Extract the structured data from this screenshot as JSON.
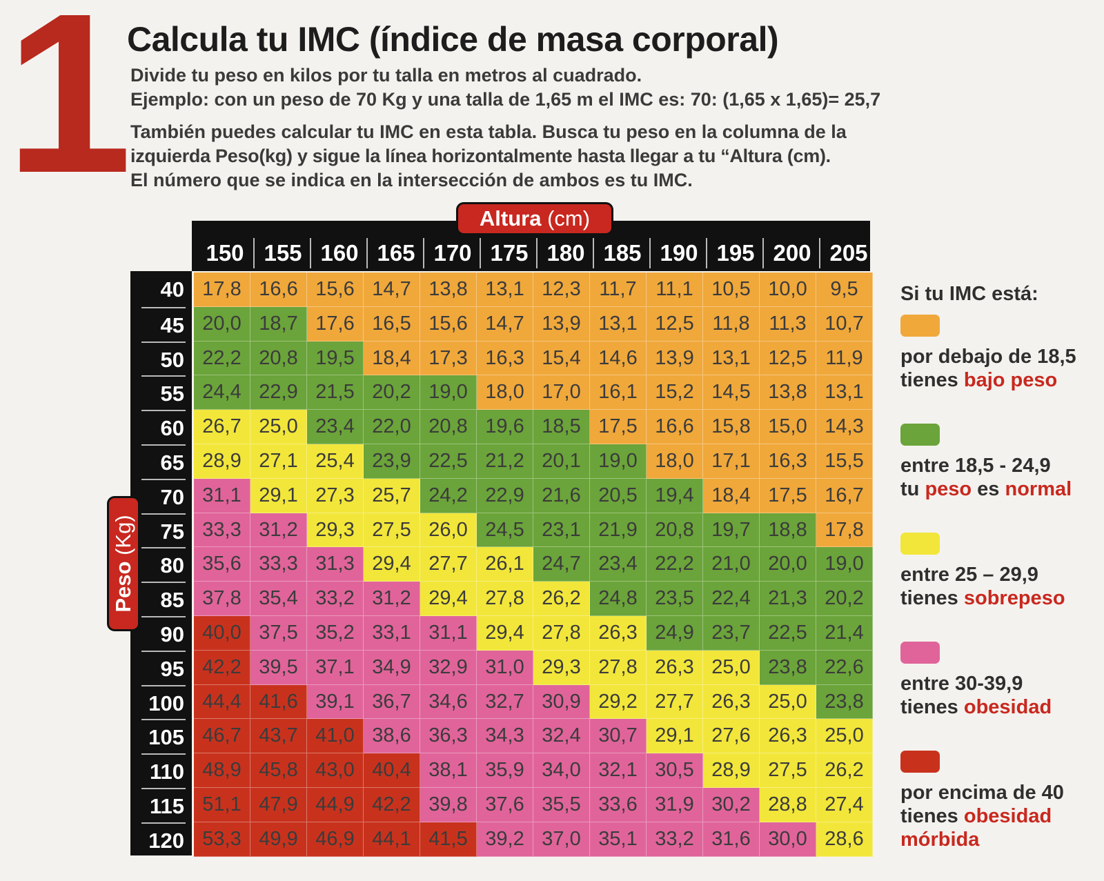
{
  "number": "1",
  "title": "Calcula tu IMC (índice de masa corporal)",
  "intro": {
    "line1": "Divide tu peso en kilos por tu talla en metros al cuadrado.",
    "line2": "Ejemplo: con un peso de 70 Kg y una talla de 1,65 m el IMC es: 70: (1,65 x 1,65)= 25,7",
    "line3": "También puedes calcular tu IMC en esta tabla. Busca tu peso en la columna de la",
    "line4": "izquierda Peso(kg) y sigue la línea horizontalmente hasta llegar a tu “Altura (cm).",
    "line5": "El número que se indica en la intersección de ambos es tu IMC."
  },
  "axis": {
    "altura_word": "Altura",
    "altura_unit": "(cm)",
    "peso_word": "Peso",
    "peso_unit": "(Kg)"
  },
  "colors": {
    "orange": "#f0a83b",
    "green": "#6ba43a",
    "yellow": "#f2e63a",
    "pink": "#e0649a",
    "red": "#c8321d",
    "accent": "#c8281f"
  },
  "table": {
    "heights": [
      "150",
      "155",
      "160",
      "165",
      "170",
      "175",
      "180",
      "185",
      "190",
      "195",
      "200",
      "205"
    ],
    "rows": [
      {
        "weight": "40",
        "values": [
          "17,8",
          "16,6",
          "15,6",
          "14,7",
          "13,8",
          "13,1",
          "12,3",
          "11,7",
          "11,1",
          "10,5",
          "10,0",
          "9,5"
        ]
      },
      {
        "weight": "45",
        "values": [
          "20,0",
          "18,7",
          "17,6",
          "16,5",
          "15,6",
          "14,7",
          "13,9",
          "13,1",
          "12,5",
          "11,8",
          "11,3",
          "10,7"
        ]
      },
      {
        "weight": "50",
        "values": [
          "22,2",
          "20,8",
          "19,5",
          "18,4",
          "17,3",
          "16,3",
          "15,4",
          "14,6",
          "13,9",
          "13,1",
          "12,5",
          "11,9"
        ]
      },
      {
        "weight": "55",
        "values": [
          "24,4",
          "22,9",
          "21,5",
          "20,2",
          "19,0",
          "18,0",
          "17,0",
          "16,1",
          "15,2",
          "14,5",
          "13,8",
          "13,1"
        ]
      },
      {
        "weight": "60",
        "values": [
          "26,7",
          "25,0",
          "23,4",
          "22,0",
          "20,8",
          "19,6",
          "18,5",
          "17,5",
          "16,6",
          "15,8",
          "15,0",
          "14,3"
        ]
      },
      {
        "weight": "65",
        "values": [
          "28,9",
          "27,1",
          "25,4",
          "23,9",
          "22,5",
          "21,2",
          "20,1",
          "19,0",
          "18,0",
          "17,1",
          "16,3",
          "15,5"
        ]
      },
      {
        "weight": "70",
        "values": [
          "31,1",
          "29,1",
          "27,3",
          "25,7",
          "24,2",
          "22,9",
          "21,6",
          "20,5",
          "19,4",
          "18,4",
          "17,5",
          "16,7"
        ]
      },
      {
        "weight": "75",
        "values": [
          "33,3",
          "31,2",
          "29,3",
          "27,5",
          "26,0",
          "24,5",
          "23,1",
          "21,9",
          "20,8",
          "19,7",
          "18,8",
          "17,8"
        ]
      },
      {
        "weight": "80",
        "values": [
          "35,6",
          "33,3",
          "31,3",
          "29,4",
          "27,7",
          "26,1",
          "24,7",
          "23,4",
          "22,2",
          "21,0",
          "20,0",
          "19,0"
        ]
      },
      {
        "weight": "85",
        "values": [
          "37,8",
          "35,4",
          "33,2",
          "31,2",
          "29,4",
          "27,8",
          "26,2",
          "24,8",
          "23,5",
          "22,4",
          "21,3",
          "20,2"
        ]
      },
      {
        "weight": "90",
        "values": [
          "40,0",
          "37,5",
          "35,2",
          "33,1",
          "31,1",
          "29,4",
          "27,8",
          "26,3",
          "24,9",
          "23,7",
          "22,5",
          "21,4"
        ]
      },
      {
        "weight": "95",
        "values": [
          "42,2",
          "39,5",
          "37,1",
          "34,9",
          "32,9",
          "31,0",
          "29,3",
          "27,8",
          "26,3",
          "25,0",
          "23,8",
          "22,6"
        ]
      },
      {
        "weight": "100",
        "values": [
          "44,4",
          "41,6",
          "39,1",
          "36,7",
          "34,6",
          "32,7",
          "30,9",
          "29,2",
          "27,7",
          "26,3",
          "25,0",
          "23,8"
        ]
      },
      {
        "weight": "105",
        "values": [
          "46,7",
          "43,7",
          "41,0",
          "38,6",
          "36,3",
          "34,3",
          "32,4",
          "30,7",
          "29,1",
          "27,6",
          "26,3",
          "25,0"
        ]
      },
      {
        "weight": "110",
        "values": [
          "48,9",
          "45,8",
          "43,0",
          "40,4",
          "38,1",
          "35,9",
          "34,0",
          "32,1",
          "30,5",
          "28,9",
          "27,5",
          "26,2"
        ]
      },
      {
        "weight": "115",
        "values": [
          "51,1",
          "47,9",
          "44,9",
          "42,2",
          "39,8",
          "37,6",
          "35,5",
          "33,6",
          "31,9",
          "30,2",
          "28,8",
          "27,4"
        ]
      },
      {
        "weight": "120",
        "values": [
          "53,3",
          "49,9",
          "46,9",
          "44,1",
          "41,5",
          "39,2",
          "37,0",
          "35,1",
          "33,2",
          "31,6",
          "30,0",
          "28,6"
        ]
      }
    ]
  },
  "legend": {
    "heading": "Si tu IMC está:",
    "items": [
      {
        "color": "orange",
        "line1": "por debajo de 18,5",
        "line2_pre": "tienes ",
        "line2_hl": "bajo peso",
        "line2_mid": "",
        "line2_hl2": "",
        "line3": ""
      },
      {
        "color": "green",
        "line1": "entre 18,5 - 24,9",
        "line2_pre": "tu ",
        "line2_hl": "peso",
        "line2_mid": " es ",
        "line2_hl2": "normal",
        "line3": ""
      },
      {
        "color": "yellow",
        "line1": "entre 25 – 29,9",
        "line2_pre": "tienes ",
        "line2_hl": "sobrepeso",
        "line2_mid": "",
        "line2_hl2": "",
        "line3": ""
      },
      {
        "color": "pink",
        "line1": "entre 30-39,9",
        "line2_pre": "tienes ",
        "line2_hl": "obesidad",
        "line2_mid": "",
        "line2_hl2": "",
        "line3": ""
      },
      {
        "color": "red",
        "line1": "por encima de 40",
        "line2_pre": "tienes ",
        "line2_hl": "obesidad",
        "line2_mid": "",
        "line2_hl2": "",
        "line3": "mórbida"
      }
    ]
  }
}
